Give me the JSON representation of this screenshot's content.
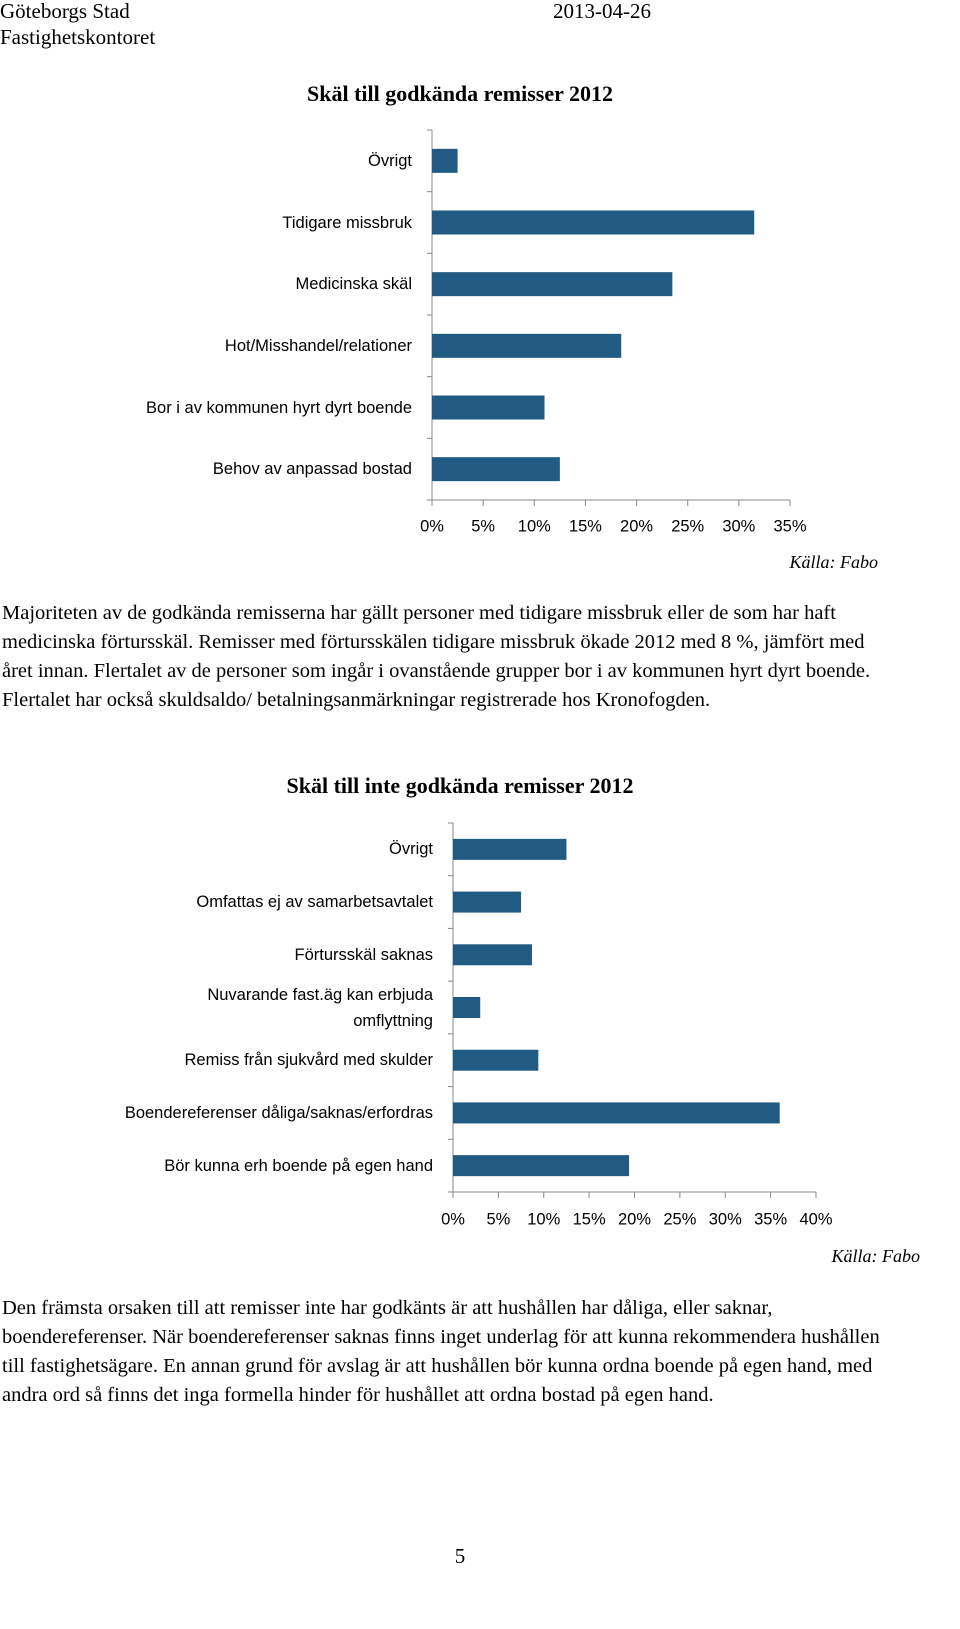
{
  "header": {
    "organization": "Göteborgs Stad",
    "department": "Fastighetskontoret",
    "date": "2013-04-26"
  },
  "chart_data": [
    {
      "type": "bar",
      "orientation": "horizontal",
      "title": "Skäl till godkända remisser 2012",
      "categories": [
        "Övrigt",
        "Tidigare missbruk",
        "Medicinska skäl",
        "Hot/Misshandel/relationer",
        "Bor i av kommunen hyrt dyrt boende",
        "Behov av anpassad bostad"
      ],
      "values": [
        2.5,
        31.5,
        23.5,
        18.5,
        11,
        12.5
      ],
      "color": "#215a82",
      "xlim": [
        0,
        35
      ],
      "xticks": [
        {
          "value": 0,
          "label": "0%"
        },
        {
          "value": 5,
          "label": "5%"
        },
        {
          "value": 10,
          "label": "10%"
        },
        {
          "value": 15,
          "label": "15%"
        },
        {
          "value": 20,
          "label": "20%"
        },
        {
          "value": 25,
          "label": "25%"
        },
        {
          "value": 30,
          "label": "30%"
        },
        {
          "value": 35,
          "label": "35%"
        }
      ],
      "source": "Källa: Fabo"
    },
    {
      "type": "bar",
      "orientation": "horizontal",
      "title": "Skäl till inte godkända remisser 2012",
      "categories": [
        "Övrigt",
        "Omfattas ej av samarbetsavtalet",
        "Förtursskäl saknas",
        "Nuvarande fast.äg kan erbjuda\nomflyttning",
        "Remiss från sjukvård med skulder",
        "Boendereferenser dåliga/saknas/erfordras",
        "Bör kunna erh boende på egen hand"
      ],
      "values": [
        12.5,
        7.5,
        8.7,
        3,
        9.4,
        36,
        19.4
      ],
      "color": "#215a82",
      "xlim": [
        0,
        40
      ],
      "xticks": [
        {
          "value": 0,
          "label": "0%"
        },
        {
          "value": 5,
          "label": "5%"
        },
        {
          "value": 10,
          "label": "10%"
        },
        {
          "value": 15,
          "label": "15%"
        },
        {
          "value": 20,
          "label": "20%"
        },
        {
          "value": 25,
          "label": "25%"
        },
        {
          "value": 30,
          "label": "30%"
        },
        {
          "value": 35,
          "label": "35%"
        },
        {
          "value": 40,
          "label": "40%"
        }
      ],
      "source": "Källa: Fabo"
    }
  ],
  "paragraphs": [
    "Majoriteten av de godkända remisserna har gällt personer med tidigare missbruk eller de som har haft medicinska förtursskäl. Remisser med förtursskälen tidigare missbruk ökade 2012 med 8 %, jämfört med året innan. Flertalet av de personer som ingår i ovanstående grupper bor i av kommunen hyrt dyrt boende. Flertalet har också skuldsaldo/ betalningsanmärkningar registrerade hos Kronofogden.",
    "Den främsta orsaken till att remisser inte har godkänts är att hushållen har dåliga, eller saknar, boendereferenser. När boendereferenser saknas finns inget underlag för att kunna rekommendera hushållen till fastighetsägare. En annan grund för avslag är att hushållen bör kunna ordna boende på egen hand, med andra ord så finns det inga formella hinder för hushållet att ordna bostad på egen hand."
  ],
  "page_number": "5"
}
